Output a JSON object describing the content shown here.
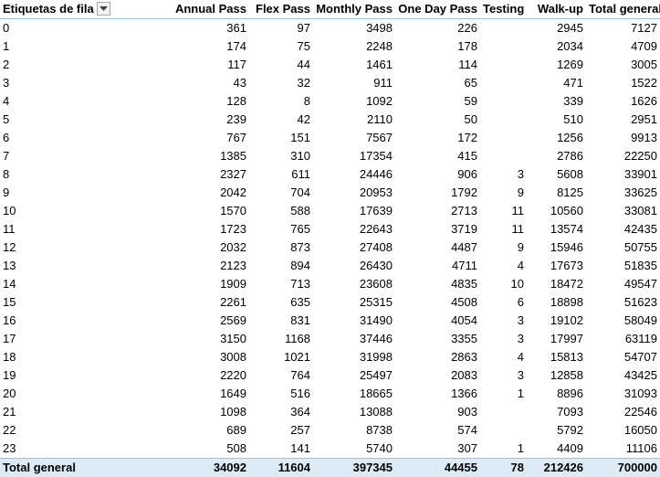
{
  "header": {
    "row_label": "Etiquetas de fila",
    "columns": [
      "Annual Pass",
      "Flex Pass",
      "Monthly Pass",
      "One Day Pass",
      "Testing",
      "Walk-up",
      "Total general"
    ],
    "filter_icon": "dropdown-arrow-icon"
  },
  "rows": [
    {
      "label": "0",
      "values": [
        "361",
        "97",
        "3498",
        "226",
        "",
        "2945",
        "7127"
      ]
    },
    {
      "label": "1",
      "values": [
        "174",
        "75",
        "2248",
        "178",
        "",
        "2034",
        "4709"
      ]
    },
    {
      "label": "2",
      "values": [
        "117",
        "44",
        "1461",
        "114",
        "",
        "1269",
        "3005"
      ]
    },
    {
      "label": "3",
      "values": [
        "43",
        "32",
        "911",
        "65",
        "",
        "471",
        "1522"
      ]
    },
    {
      "label": "4",
      "values": [
        "128",
        "8",
        "1092",
        "59",
        "",
        "339",
        "1626"
      ]
    },
    {
      "label": "5",
      "values": [
        "239",
        "42",
        "2110",
        "50",
        "",
        "510",
        "2951"
      ]
    },
    {
      "label": "6",
      "values": [
        "767",
        "151",
        "7567",
        "172",
        "",
        "1256",
        "9913"
      ]
    },
    {
      "label": "7",
      "values": [
        "1385",
        "310",
        "17354",
        "415",
        "",
        "2786",
        "22250"
      ]
    },
    {
      "label": "8",
      "values": [
        "2327",
        "611",
        "24446",
        "906",
        "3",
        "5608",
        "33901"
      ]
    },
    {
      "label": "9",
      "values": [
        "2042",
        "704",
        "20953",
        "1792",
        "9",
        "8125",
        "33625"
      ]
    },
    {
      "label": "10",
      "values": [
        "1570",
        "588",
        "17639",
        "2713",
        "11",
        "10560",
        "33081"
      ]
    },
    {
      "label": "11",
      "values": [
        "1723",
        "765",
        "22643",
        "3719",
        "11",
        "13574",
        "42435"
      ]
    },
    {
      "label": "12",
      "values": [
        "2032",
        "873",
        "27408",
        "4487",
        "9",
        "15946",
        "50755"
      ]
    },
    {
      "label": "13",
      "values": [
        "2123",
        "894",
        "26430",
        "4711",
        "4",
        "17673",
        "51835"
      ]
    },
    {
      "label": "14",
      "values": [
        "1909",
        "713",
        "23608",
        "4835",
        "10",
        "18472",
        "49547"
      ]
    },
    {
      "label": "15",
      "values": [
        "2261",
        "635",
        "25315",
        "4508",
        "6",
        "18898",
        "51623"
      ]
    },
    {
      "label": "16",
      "values": [
        "2569",
        "831",
        "31490",
        "4054",
        "3",
        "19102",
        "58049"
      ]
    },
    {
      "label": "17",
      "values": [
        "3150",
        "1168",
        "37446",
        "3355",
        "3",
        "17997",
        "63119"
      ]
    },
    {
      "label": "18",
      "values": [
        "3008",
        "1021",
        "31998",
        "2863",
        "4",
        "15813",
        "54707"
      ]
    },
    {
      "label": "19",
      "values": [
        "2220",
        "764",
        "25497",
        "2083",
        "3",
        "12858",
        "43425"
      ]
    },
    {
      "label": "20",
      "values": [
        "1649",
        "516",
        "18665",
        "1366",
        "1",
        "8896",
        "31093"
      ]
    },
    {
      "label": "21",
      "values": [
        "1098",
        "364",
        "13088",
        "903",
        "",
        "7093",
        "22546"
      ]
    },
    {
      "label": "22",
      "values": [
        "689",
        "257",
        "8738",
        "574",
        "",
        "5792",
        "16050"
      ]
    },
    {
      "label": "23",
      "values": [
        "508",
        "141",
        "5740",
        "307",
        "1",
        "4409",
        "11106"
      ]
    }
  ],
  "total": {
    "label": "Total general",
    "values": [
      "34092",
      "11604",
      "397345",
      "44455",
      "78",
      "212426",
      "700000"
    ]
  },
  "colors": {
    "header_border": "#9bc2e6",
    "total_background": "#ddebf7"
  }
}
